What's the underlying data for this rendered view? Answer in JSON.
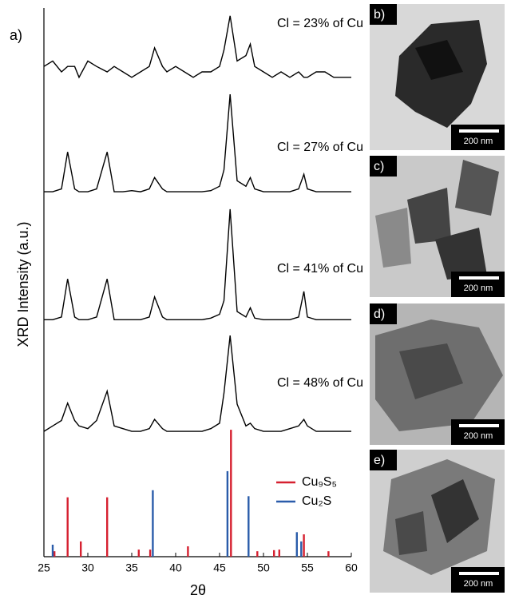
{
  "chart_data": {
    "type": "line",
    "panel_label": "a)",
    "xlabel": "2θ",
    "ylabel": "XRD Intensity (a.u.)",
    "xlim": [
      25,
      60
    ],
    "xticks": [
      25,
      30,
      35,
      40,
      45,
      50,
      55,
      60
    ],
    "ylim": [
      0,
      100
    ],
    "x": [
      25,
      26,
      27,
      27.7,
      28.5,
      29,
      30,
      31,
      32.2,
      33,
      34,
      35,
      36,
      37,
      37.6,
      38.5,
      39,
      40,
      41,
      42,
      43,
      44,
      45,
      45.5,
      46.2,
      47,
      48,
      48.5,
      49,
      50,
      51,
      52,
      53,
      54,
      54.6,
      55,
      56,
      57,
      58,
      59,
      60
    ],
    "series": [
      {
        "name": "Cl = 23% of Cu",
        "color": "#000000",
        "values": [
          90,
          91,
          89,
          90,
          90,
          88,
          91,
          90,
          89,
          90,
          89,
          88,
          89,
          90,
          93.4,
          90,
          89,
          90,
          89,
          88,
          89,
          89,
          90,
          93,
          99.3,
          91,
          92,
          94.1,
          90,
          89,
          88,
          89,
          88,
          89,
          88,
          88,
          89,
          89,
          88,
          88,
          88
        ]
      },
      {
        "name": "Cl = 27% of Cu",
        "color": "#000000",
        "values": [
          67,
          67,
          67.5,
          74.3,
          67.5,
          67,
          67,
          67.5,
          74.3,
          67,
          67,
          67.2,
          67,
          67.5,
          69.6,
          67.5,
          67,
          67,
          67,
          67,
          67,
          67.2,
          68,
          71,
          84.9,
          69,
          68,
          69.6,
          67.5,
          67,
          67,
          67,
          67,
          67.5,
          70.2,
          67.5,
          67,
          67,
          67,
          67,
          67
        ]
      },
      {
        "name": "Cl = 41% of Cu",
        "color": "#000000",
        "values": [
          43.5,
          43.5,
          44,
          51,
          44,
          43.5,
          43.5,
          44,
          51,
          43.5,
          43.5,
          43.5,
          43.5,
          44,
          47.7,
          44,
          43.5,
          43.5,
          43.5,
          43.5,
          43.5,
          43.8,
          44.5,
          47,
          63.8,
          45,
          44,
          45.7,
          43.8,
          43.5,
          43.5,
          43.5,
          43.5,
          44,
          48.7,
          44,
          43.5,
          43.5,
          43.5,
          43.5,
          43.5
        ]
      },
      {
        "name": "Cl = 48% of Cu",
        "color": "#000000",
        "values": [
          23,
          24,
          25,
          28.2,
          25,
          24,
          23.5,
          25,
          30.4,
          24,
          23.5,
          23,
          23,
          23.5,
          25.2,
          23.5,
          23,
          23,
          23,
          23,
          23,
          23.5,
          24.5,
          30,
          40.6,
          28,
          24,
          24.5,
          23.5,
          23,
          23,
          23,
          23.5,
          24,
          25.2,
          24,
          23,
          23,
          23,
          23,
          23
        ]
      }
    ],
    "references": [
      {
        "name": "Cu₉S₅",
        "color": "#d62030",
        "x": [
          26.2,
          27.7,
          29.2,
          32.2,
          35.8,
          37.1,
          41.4,
          46.3,
          49.3,
          51.2,
          51.8,
          54.6,
          57.4
        ],
        "values": [
          1,
          10.9,
          2.8,
          10.9,
          1.3,
          1.3,
          1.9,
          23.3,
          1,
          1.2,
          1.3,
          4.1,
          1
        ]
      },
      {
        "name": "Cu₂S",
        "color": "#2a5caa",
        "x": [
          26.0,
          37.4,
          45.9,
          48.3,
          53.8,
          54.3
        ],
        "values": [
          2.2,
          12.2,
          15.7,
          11.1,
          4.5,
          2.8
        ]
      }
    ]
  },
  "images": [
    {
      "label": "b)",
      "scale_bar": "200 nm"
    },
    {
      "label": "c)",
      "scale_bar": "200 nm"
    },
    {
      "label": "d)",
      "scale_bar": "200 nm"
    },
    {
      "label": "e)",
      "scale_bar": "200 nm"
    }
  ]
}
